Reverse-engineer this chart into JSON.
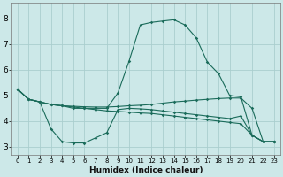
{
  "xlabel": "Humidex (Indice chaleur)",
  "background_color": "#cce8e8",
  "grid_color": "#aacece",
  "line_color": "#1a6b5a",
  "xlim": [
    -0.5,
    23.5
  ],
  "ylim": [
    2.7,
    8.6
  ],
  "yticks": [
    3,
    4,
    5,
    6,
    7,
    8
  ],
  "xticks": [
    0,
    1,
    2,
    3,
    4,
    5,
    6,
    7,
    8,
    9,
    10,
    11,
    12,
    13,
    14,
    15,
    16,
    17,
    18,
    19,
    20,
    21,
    22,
    23
  ],
  "lines": [
    {
      "x": [
        0,
        1,
        2,
        3,
        4,
        5,
        6,
        7,
        8,
        9,
        10,
        11,
        12,
        13,
        14,
        15,
        16,
        17,
        18,
        19,
        20,
        21,
        22,
        23
      ],
      "y": [
        5.25,
        4.85,
        4.75,
        4.65,
        4.6,
        4.5,
        4.5,
        4.5,
        4.5,
        5.1,
        6.35,
        7.75,
        7.85,
        7.9,
        7.95,
        7.75,
        7.25,
        6.3,
        5.85,
        5.0,
        4.95,
        3.45,
        3.2,
        3.2
      ]
    },
    {
      "x": [
        0,
        1,
        2,
        3,
        4,
        5,
        6,
        7,
        8,
        9,
        10,
        11,
        12,
        13,
        14,
        15,
        16,
        17,
        18,
        19,
        20,
        21,
        22,
        23
      ],
      "y": [
        5.25,
        4.85,
        4.75,
        4.65,
        4.6,
        4.58,
        4.56,
        4.55,
        4.55,
        4.57,
        4.6,
        4.62,
        4.65,
        4.7,
        4.75,
        4.78,
        4.82,
        4.85,
        4.88,
        4.9,
        4.9,
        4.5,
        3.2,
        3.2
      ]
    },
    {
      "x": [
        0,
        1,
        2,
        3,
        4,
        5,
        6,
        7,
        8,
        9,
        10,
        11,
        12,
        13,
        14,
        15,
        16,
        17,
        18,
        19,
        20,
        21,
        22,
        23
      ],
      "y": [
        5.25,
        4.85,
        4.75,
        3.7,
        3.2,
        3.15,
        3.15,
        3.35,
        3.55,
        4.45,
        4.5,
        4.48,
        4.45,
        4.4,
        4.35,
        4.3,
        4.25,
        4.2,
        4.15,
        4.1,
        4.2,
        3.45,
        3.2,
        3.2
      ]
    },
    {
      "x": [
        0,
        1,
        2,
        3,
        4,
        5,
        6,
        7,
        8,
        9,
        10,
        11,
        12,
        13,
        14,
        15,
        16,
        17,
        18,
        19,
        20,
        21,
        22,
        23
      ],
      "y": [
        5.25,
        4.85,
        4.75,
        4.65,
        4.6,
        4.55,
        4.5,
        4.45,
        4.4,
        4.38,
        4.35,
        4.32,
        4.3,
        4.25,
        4.2,
        4.15,
        4.1,
        4.05,
        4.0,
        3.95,
        3.9,
        3.45,
        3.2,
        3.2
      ]
    }
  ]
}
